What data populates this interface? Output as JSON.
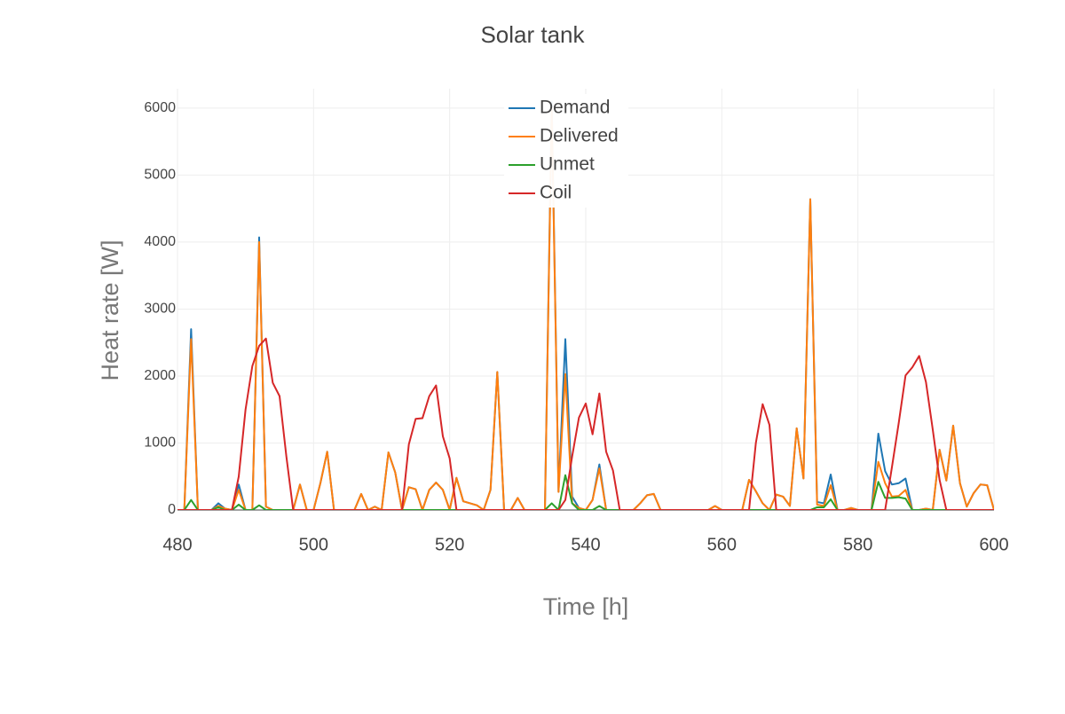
{
  "chart_data": {
    "type": "line",
    "title": "Solar tank",
    "xlabel": "Time [h]",
    "ylabel": "Heat rate [W]",
    "x": [
      480,
      481,
      482,
      483,
      484,
      485,
      486,
      487,
      488,
      489,
      490,
      491,
      492,
      493,
      494,
      495,
      496,
      497,
      498,
      499,
      500,
      501,
      502,
      503,
      504,
      505,
      506,
      507,
      508,
      509,
      510,
      511,
      512,
      513,
      514,
      515,
      516,
      517,
      518,
      519,
      520,
      521,
      522,
      523,
      524,
      525,
      526,
      527,
      528,
      529,
      530,
      531,
      532,
      533,
      534,
      535,
      536,
      537,
      538,
      539,
      540,
      541,
      542,
      543,
      544,
      545,
      546,
      547,
      548,
      549,
      550,
      551,
      552,
      553,
      554,
      555,
      556,
      557,
      558,
      559,
      560,
      561,
      562,
      563,
      564,
      565,
      566,
      567,
      568,
      569,
      570,
      571,
      572,
      573,
      574,
      575,
      576,
      577,
      578,
      579,
      580,
      581,
      582,
      583,
      584,
      585,
      586,
      587,
      588,
      589,
      590,
      591,
      592,
      593,
      594,
      595,
      596,
      597,
      598,
      599,
      600
    ],
    "series": [
      {
        "name": "Demand",
        "color": "#1f77b4",
        "values": [
          0,
          0,
          2700,
          0,
          0,
          0,
          100,
          20,
          0,
          380,
          0,
          0,
          4070,
          50,
          0,
          0,
          0,
          0,
          380,
          0,
          0,
          400,
          870,
          0,
          0,
          0,
          0,
          240,
          0,
          50,
          0,
          860,
          560,
          0,
          340,
          310,
          0,
          300,
          410,
          300,
          0,
          480,
          130,
          100,
          70,
          0,
          300,
          2060,
          0,
          0,
          180,
          0,
          0,
          0,
          0,
          6100,
          270,
          2550,
          200,
          30,
          0,
          150,
          680,
          0,
          0,
          0,
          0,
          0,
          100,
          220,
          240,
          0,
          0,
          0,
          0,
          0,
          0,
          0,
          0,
          60,
          0,
          0,
          0,
          0,
          450,
          280,
          100,
          0,
          230,
          200,
          60,
          1220,
          470,
          4640,
          120,
          100,
          530,
          0,
          0,
          30,
          0,
          0,
          0,
          1140,
          580,
          380,
          400,
          470,
          0,
          0,
          20,
          0,
          900,
          440,
          1260,
          400,
          50,
          250,
          380,
          370,
          0
        ]
      },
      {
        "name": "Delivered",
        "color": "#ff7f0e",
        "values": [
          0,
          0,
          2550,
          0,
          0,
          0,
          60,
          20,
          0,
          300,
          0,
          0,
          4000,
          50,
          0,
          0,
          0,
          0,
          380,
          0,
          0,
          400,
          870,
          0,
          0,
          0,
          0,
          240,
          0,
          50,
          0,
          860,
          560,
          0,
          340,
          310,
          0,
          300,
          410,
          300,
          0,
          480,
          130,
          100,
          70,
          0,
          300,
          2060,
          0,
          0,
          180,
          0,
          0,
          0,
          0,
          6000,
          270,
          2030,
          100,
          30,
          0,
          150,
          620,
          0,
          0,
          0,
          0,
          0,
          100,
          220,
          240,
          0,
          0,
          0,
          0,
          0,
          0,
          0,
          0,
          60,
          0,
          0,
          0,
          0,
          450,
          280,
          100,
          0,
          230,
          200,
          60,
          1220,
          470,
          4640,
          80,
          60,
          370,
          0,
          0,
          30,
          0,
          0,
          0,
          720,
          400,
          200,
          210,
          300,
          0,
          0,
          20,
          0,
          900,
          440,
          1260,
          400,
          50,
          250,
          380,
          370,
          0
        ]
      },
      {
        "name": "Unmet",
        "color": "#2ca02c",
        "values": [
          0,
          0,
          150,
          0,
          0,
          0,
          40,
          0,
          0,
          80,
          0,
          0,
          70,
          0,
          0,
          0,
          0,
          0,
          0,
          0,
          0,
          0,
          0,
          0,
          0,
          0,
          0,
          0,
          0,
          0,
          0,
          0,
          0,
          0,
          0,
          0,
          0,
          0,
          0,
          0,
          0,
          0,
          0,
          0,
          0,
          0,
          0,
          0,
          0,
          0,
          0,
          0,
          0,
          0,
          0,
          100,
          0,
          520,
          100,
          0,
          0,
          0,
          60,
          0,
          0,
          0,
          0,
          0,
          0,
          0,
          0,
          0,
          0,
          0,
          0,
          0,
          0,
          0,
          0,
          0,
          0,
          0,
          0,
          0,
          0,
          0,
          0,
          0,
          0,
          0,
          0,
          0,
          0,
          0,
          40,
          40,
          160,
          0,
          0,
          0,
          0,
          0,
          0,
          420,
          180,
          180,
          190,
          170,
          0,
          0,
          0,
          0,
          0,
          0,
          0,
          0,
          0,
          0,
          0,
          0,
          0
        ]
      },
      {
        "name": "Coil",
        "color": "#d62728",
        "values": [
          0,
          0,
          0,
          0,
          0,
          0,
          0,
          0,
          0,
          500,
          1500,
          2150,
          2450,
          2560,
          1900,
          1700,
          800,
          0,
          0,
          0,
          0,
          0,
          0,
          0,
          0,
          0,
          0,
          0,
          0,
          0,
          0,
          0,
          0,
          0,
          980,
          1360,
          1370,
          1700,
          1860,
          1100,
          770,
          0,
          0,
          0,
          0,
          0,
          0,
          0,
          0,
          0,
          0,
          0,
          0,
          0,
          0,
          0,
          0,
          150,
          800,
          1380,
          1590,
          1130,
          1740,
          870,
          590,
          0,
          0,
          0,
          0,
          0,
          0,
          0,
          0,
          0,
          0,
          0,
          0,
          0,
          0,
          0,
          0,
          0,
          0,
          0,
          0,
          1000,
          1580,
          1270,
          0,
          0,
          0,
          0,
          0,
          0,
          0,
          0,
          0,
          0,
          0,
          0,
          0,
          0,
          0,
          0,
          0,
          640,
          1300,
          2010,
          2130,
          2300,
          1910,
          1200,
          450,
          0,
          0,
          0,
          0,
          0,
          0,
          0,
          0
        ]
      }
    ],
    "xlim": [
      480,
      600
    ],
    "ylim": [
      0,
      6290
    ],
    "xticks": [
      480,
      500,
      520,
      540,
      560,
      580,
      600
    ],
    "yticks": [
      0,
      1000,
      2000,
      3000,
      4000,
      5000,
      6000
    ],
    "grid": true,
    "legend": "top"
  }
}
